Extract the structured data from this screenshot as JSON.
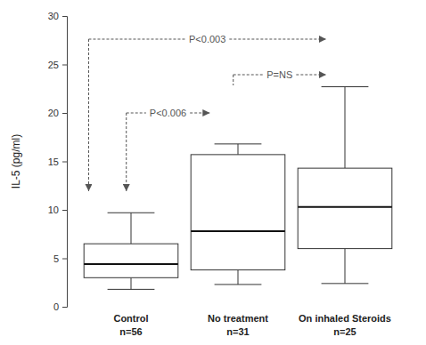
{
  "chart_data": {
    "type": "box",
    "y_label": "IL-5 (pg/ml)",
    "categories": [
      "Control",
      "No treatment",
      "On inhaled Steroids"
    ],
    "category_notes": [
      "n=56",
      "n=31",
      "n=25"
    ],
    "boxes": [
      {
        "whisker_low": 1.8,
        "q1": 3.0,
        "median": 4.4,
        "q3": 6.5,
        "whisker_high": 9.7
      },
      {
        "whisker_low": 2.3,
        "q1": 3.8,
        "median": 7.8,
        "q3": 15.7,
        "whisker_high": 16.8
      },
      {
        "whisker_low": 2.4,
        "q1": 6.0,
        "median": 10.3,
        "q3": 14.3,
        "whisker_high": 22.7
      }
    ],
    "color": "#ffffff",
    "ylim": [
      0,
      30
    ],
    "yticks": [
      0,
      5,
      10,
      15,
      20,
      25,
      30
    ],
    "annotations": [
      {
        "from": 0,
        "to": 2,
        "label": "P<0.003"
      },
      {
        "from": 0,
        "to": 1,
        "label": "P<0.006"
      },
      {
        "from": 1,
        "to": 2,
        "label": "P=NS"
      }
    ]
  }
}
